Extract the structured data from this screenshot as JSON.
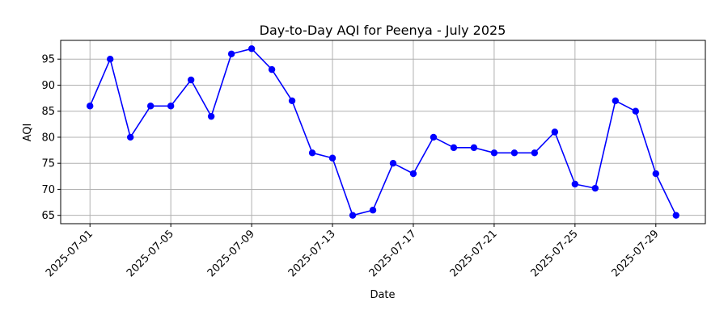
{
  "chart_data": {
    "type": "line",
    "title": "Day-to-Day AQI for Peenya - July 2025",
    "xlabel": "Date",
    "ylabel": "AQI",
    "ylim": [
      63.4,
      98.6
    ],
    "xlim": [
      "2025-06-29T13:12",
      "2025-07-31T10:48"
    ],
    "grid": true,
    "y_ticks": [
      65,
      70,
      75,
      80,
      85,
      90,
      95
    ],
    "x_ticks": [
      "2025-07-01",
      "2025-07-05",
      "2025-07-09",
      "2025-07-13",
      "2025-07-17",
      "2025-07-21",
      "2025-07-25",
      "2025-07-29"
    ],
    "series_color": "#0000ff",
    "marker": "circle",
    "series": [
      {
        "x": [
          "2025-07-01",
          "2025-07-02",
          "2025-07-03",
          "2025-07-04",
          "2025-07-05",
          "2025-07-06",
          "2025-07-07",
          "2025-07-08",
          "2025-07-09",
          "2025-07-10",
          "2025-07-11",
          "2025-07-12",
          "2025-07-13",
          "2025-07-14",
          "2025-07-15",
          "2025-07-16",
          "2025-07-17",
          "2025-07-18",
          "2025-07-19",
          "2025-07-20",
          "2025-07-21",
          "2025-07-22",
          "2025-07-23",
          "2025-07-24",
          "2025-07-25",
          "2025-07-26",
          "2025-07-27",
          "2025-07-28",
          "2025-07-29",
          "2025-07-30"
        ],
        "values": [
          86,
          95,
          80,
          86,
          86,
          91,
          84,
          96,
          97,
          93,
          87,
          77,
          76,
          65,
          66,
          75,
          73,
          80,
          78,
          78,
          77,
          77,
          77,
          81,
          71,
          70.2,
          87,
          85,
          73,
          65
        ]
      }
    ]
  }
}
